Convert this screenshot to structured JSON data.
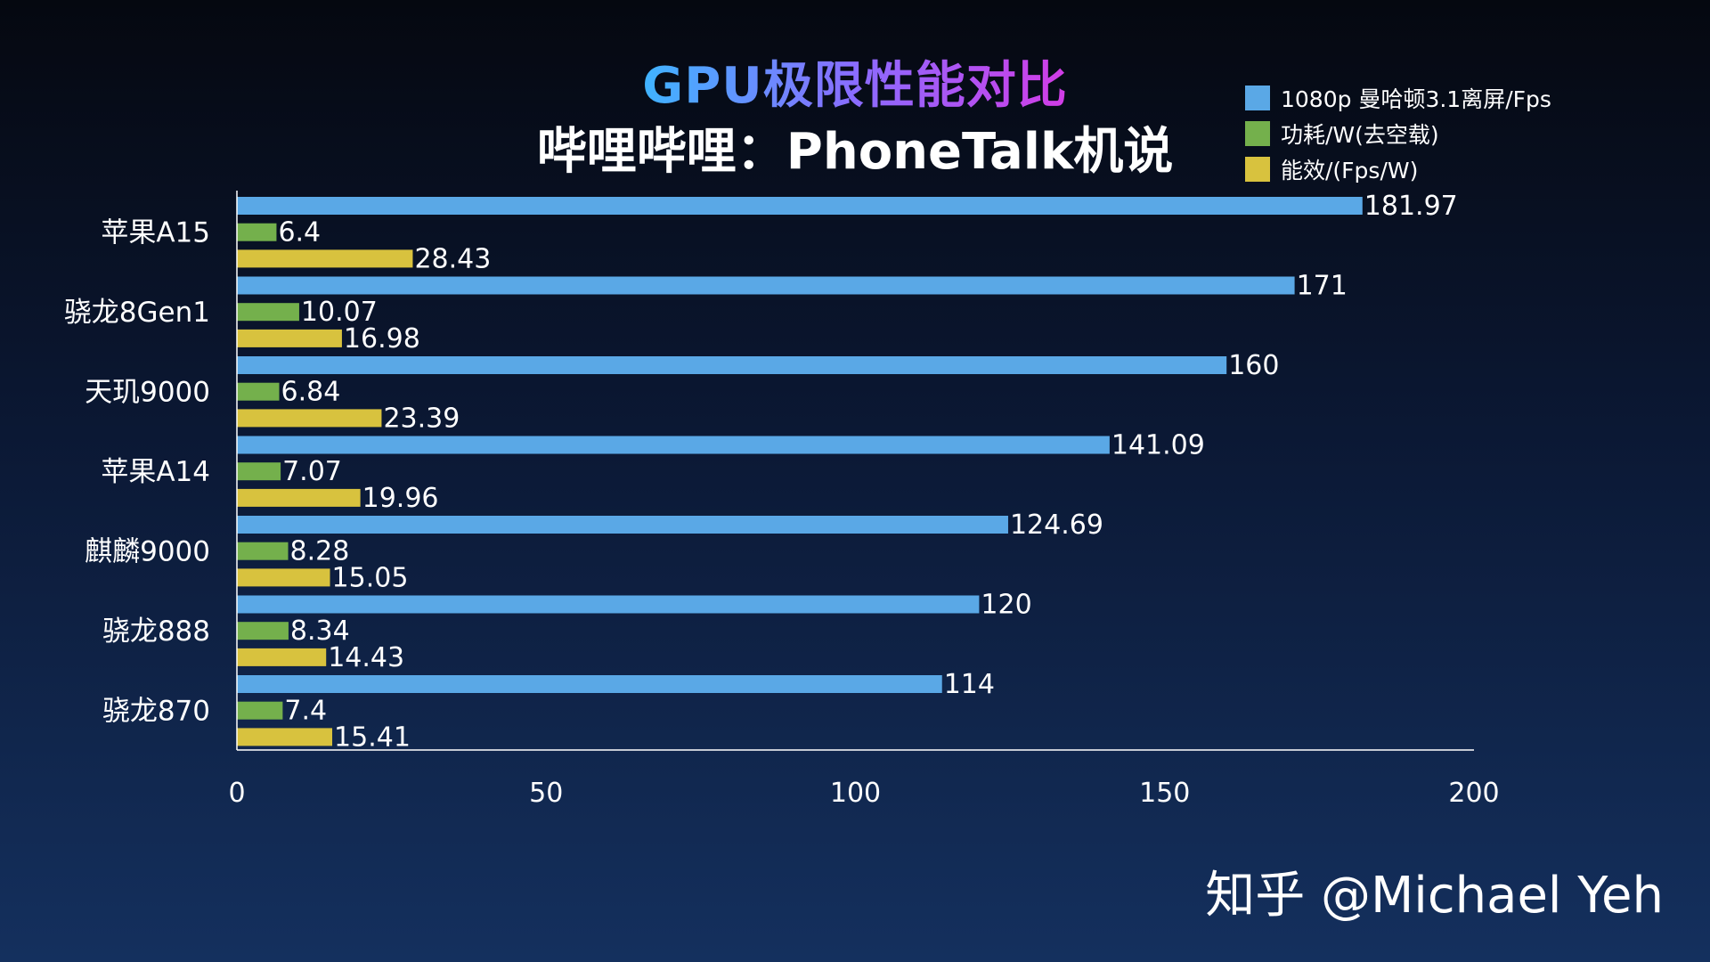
{
  "chart_data": {
    "type": "bar",
    "orientation": "horizontal",
    "title": "GPU极限性能对比",
    "subtitle": "哔哩哔哩：PhoneTalk机说",
    "categories": [
      "苹果A15",
      "骁龙8Gen1",
      "天玑9000",
      "苹果A14",
      "麒麟9000",
      "骁龙888",
      "骁龙870"
    ],
    "series": [
      {
        "name": "1080p 曼哈顿3.1离屏/Fps",
        "color": "#5aa8e6",
        "values": [
          181.97,
          171,
          160,
          141.09,
          124.69,
          120,
          114
        ]
      },
      {
        "name": "功耗/W(去空载)",
        "color": "#74b04c",
        "values": [
          6.4,
          10.07,
          6.84,
          7.07,
          8.28,
          8.34,
          7.4
        ]
      },
      {
        "name": "能效/(Fps/W)",
        "color": "#d8c23e",
        "values": [
          28.43,
          16.98,
          23.39,
          19.96,
          15.05,
          14.43,
          15.41
        ]
      }
    ],
    "value_labels": [
      [
        "181.97",
        "6.4",
        "28.43"
      ],
      [
        "171",
        "10.07",
        "16.98"
      ],
      [
        "160",
        "6.84",
        "23.39"
      ],
      [
        "141.09",
        "7.07",
        "19.96"
      ],
      [
        "124.69",
        "8.28",
        "15.05"
      ],
      [
        "120",
        "8.34",
        "14.43"
      ],
      [
        "114",
        "7.4",
        "15.41"
      ]
    ],
    "x_ticks": [
      0,
      50,
      100,
      150,
      200
    ],
    "x_tick_labels": [
      "0",
      "50",
      "100",
      "150",
      "200"
    ],
    "xlim": [
      0,
      200
    ],
    "xlabel": "",
    "ylabel": "",
    "grid": false,
    "legend_position": "top-right"
  },
  "watermark": "知乎 @Michael Yeh"
}
